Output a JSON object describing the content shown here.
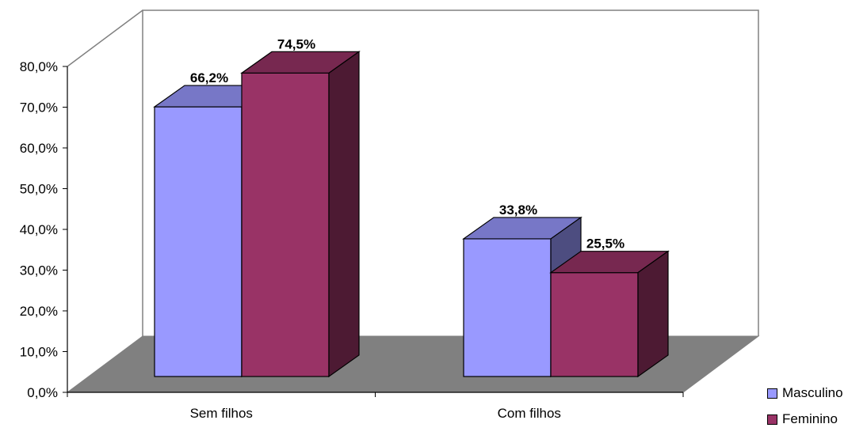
{
  "chart_data": {
    "type": "bar",
    "title": "",
    "xlabel": "",
    "ylabel": "",
    "ylim": [
      0,
      80
    ],
    "yticks": [
      "0,0%",
      "10,0%",
      "20,0%",
      "30,0%",
      "40,0%",
      "50,0%",
      "60,0%",
      "70,0%",
      "80,0%"
    ],
    "categories": [
      "Sem filhos",
      "Com filhos"
    ],
    "series": [
      {
        "name": "Masculino",
        "values": [
          66.2,
          33.8
        ],
        "labels": [
          "66,2%",
          "33,8%"
        ],
        "color": "#9999ff"
      },
      {
        "name": "Feminino",
        "values": [
          74.5,
          25.5
        ],
        "labels": [
          "74,5%",
          "25,5%"
        ],
        "color": "#993366"
      }
    ],
    "legend_position": "bottom-right",
    "style": "3d",
    "floor_color": "#808080"
  }
}
